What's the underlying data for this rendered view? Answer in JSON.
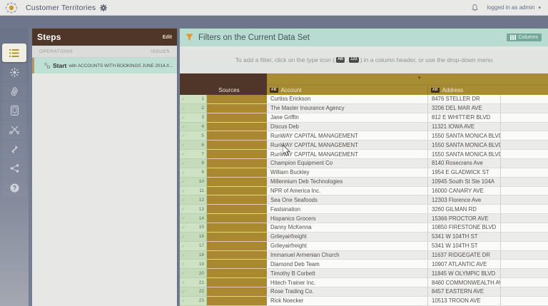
{
  "topbar": {
    "title": "Customer Territories",
    "user_menu": "logged in as admin"
  },
  "sidebar": {
    "items": [
      {
        "icon": "steps-list-icon",
        "active": true
      },
      {
        "icon": "settings-sun-icon",
        "active": false
      },
      {
        "icon": "attachment-paperclip-icon",
        "active": false
      },
      {
        "icon": "dataset-tablet-icon",
        "active": false
      },
      {
        "icon": "cut-scissors-icon",
        "active": false
      },
      {
        "icon": "expand-arrow-icon",
        "active": false
      },
      {
        "icon": "share-network-icon",
        "active": false
      },
      {
        "icon": "help-question-icon",
        "active": false
      }
    ]
  },
  "steps": {
    "title": "Steps",
    "edit_label": "Edit",
    "operations_label": "OPERATIONS",
    "issues_label": "ISSUES",
    "start": {
      "label": "Start",
      "text": "with ACCOUNTS WITH BOOKINGS JUNE 2014.X..."
    }
  },
  "filters": {
    "title": "Filters on the Current Data Set",
    "columns_button": "Columns",
    "instruction_pre": "To add a filter, click on the type icon (",
    "badge_text": "AB",
    "badge_sep": ",",
    "badge_numeric": "123",
    "instruction_post": ") in a column header, or use the drop-down menu"
  },
  "table": {
    "headers": {
      "sources": "Sources",
      "account": "Account",
      "address": "Address",
      "type_badge": "AB"
    },
    "colors": {
      "header_gold": "#a78c33",
      "header_brown": "#4f3629",
      "source_bar": "#a9882f",
      "row_number_green": "#cfe2c4",
      "accent_teal": "#b9dcd2",
      "accent_orange": "#dd9933"
    },
    "rows": [
      {
        "n": "1",
        "account": "Curtiss Erickson",
        "address": "8476 STELLER DR"
      },
      {
        "n": "2",
        "account": "The Master Insurance Agency",
        "address": "3206 DEL MAR AVE"
      },
      {
        "n": "3",
        "account": "Jane Griffin",
        "address": "812 E WHITTIER BLVD"
      },
      {
        "n": "4",
        "account": "Discus Deb",
        "address": "11321 IOWA AVE"
      },
      {
        "n": "5",
        "account": "RunWAY CAPITAL MANAGEMENT",
        "address": "1550 SANTA MONICA BLVD"
      },
      {
        "n": "6",
        "account": "RunWAY CAPITAL MANAGEMENT",
        "address": "1550 SANTA MONICA BLVD"
      },
      {
        "n": "7",
        "account": "RunWAY CAPITAL MANAGEMENT",
        "address": "1550 SANTA MONICA BLVD"
      },
      {
        "n": "8",
        "account": "Champion Equipment Co",
        "address": "8140 Rosecrans Ave"
      },
      {
        "n": "9",
        "account": "William Buckley",
        "address": "1954 E GLADWICK ST"
      },
      {
        "n": "10",
        "account": "Millennium Deb Technologies",
        "address": "10945 South St Ste 104A"
      },
      {
        "n": "11",
        "account": "NPR of America Inc.",
        "address": "16000 CANARY AVE"
      },
      {
        "n": "12",
        "account": "Sea One Seafoods",
        "address": "12303 Florence Ave"
      },
      {
        "n": "13",
        "account": "Fastsination",
        "address": "3260 GILMAN RD"
      },
      {
        "n": "14",
        "account": "Hispanics Grocers",
        "address": "15366 PROCTOR AVE"
      },
      {
        "n": "15",
        "account": "Danny McKenna",
        "address": "10850 FIRESTONE BLVD"
      },
      {
        "n": "16",
        "account": "Grileyairfreight",
        "address": "5341 W 104TH ST"
      },
      {
        "n": "17",
        "account": "Grileyairfreight",
        "address": "5341 W 104TH ST"
      },
      {
        "n": "18",
        "account": "Immanuel Armenian Church",
        "address": "11637 RIDGEGATE DR"
      },
      {
        "n": "19",
        "account": "Diamond Deb Team",
        "address": "10907 ATLANTIC AVE"
      },
      {
        "n": "20",
        "account": "Timothy B Corbett",
        "address": "11845 W OLYMPIC BLVD"
      },
      {
        "n": "21",
        "account": "Hitech Trainer Inc.",
        "address": "8460 COMMONWEALTH AVE"
      },
      {
        "n": "22",
        "account": "Rose Trading Co.",
        "address": "8457 EASTERN AVE"
      },
      {
        "n": "23",
        "account": "Rick Noecker",
        "address": "10513 TROON AVE"
      }
    ]
  }
}
